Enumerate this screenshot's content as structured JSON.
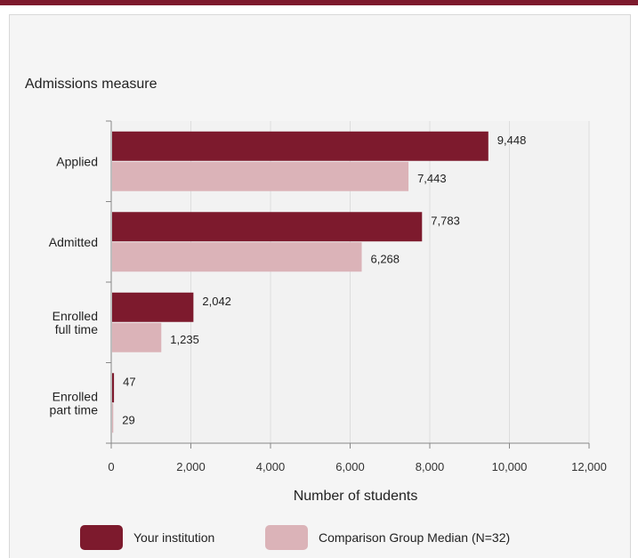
{
  "colors": {
    "accent": "#7d1a2d",
    "your_institution": "#7d1a2d",
    "comparison": "#dbb3b8"
  },
  "chart_data": {
    "type": "bar",
    "orientation": "horizontal",
    "title": "Admissions measure",
    "xlabel": "Number of students",
    "ylabel": "",
    "xlim": [
      0,
      12000
    ],
    "x_ticks": [
      "0",
      "2,000",
      "4,000",
      "6,000",
      "8,000",
      "10,000",
      "12,000"
    ],
    "categories": [
      "Applied",
      "Admitted",
      "Enrolled full time",
      "Enrolled part time"
    ],
    "series": [
      {
        "name": "Your institution",
        "values": [
          9448,
          7783,
          2042,
          47
        ],
        "labels": [
          "9,448",
          "7,783",
          "2,042",
          "47"
        ]
      },
      {
        "name": "Comparison Group Median (N=32)",
        "values": [
          7443,
          6268,
          1235,
          29
        ],
        "labels": [
          "7,443",
          "6,268",
          "1,235",
          "29"
        ]
      }
    ],
    "grid": true,
    "legend_position": "bottom"
  }
}
